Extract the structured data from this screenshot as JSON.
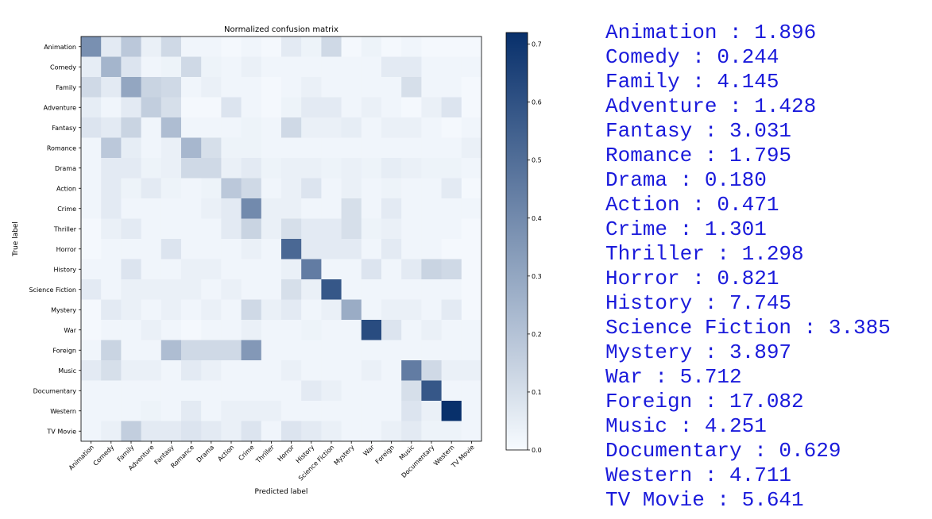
{
  "chart_data": {
    "type": "heatmap",
    "title": "Normalized confusion matrix",
    "xlabel": "Predicted label",
    "ylabel": "True label",
    "labels": [
      "Animation",
      "Comedy",
      "Family",
      "Adventure",
      "Fantasy",
      "Romance",
      "Drama",
      "Action",
      "Crime",
      "Thriller",
      "Horror",
      "History",
      "Science Fiction",
      "Mystery",
      "War",
      "Foreign",
      "Music",
      "Documentary",
      "Western",
      "TV Movie"
    ],
    "values": [
      [
        0.38,
        0.06,
        0.18,
        0.04,
        0.12,
        0.02,
        0.02,
        0.01,
        0.02,
        0.01,
        0.06,
        0.03,
        0.12,
        0.01,
        0.03,
        0.01,
        0.02,
        0.01,
        0.01,
        0.01
      ],
      [
        0.05,
        0.25,
        0.08,
        0.02,
        0.03,
        0.12,
        0.03,
        0.02,
        0.04,
        0.02,
        0.02,
        0.02,
        0.02,
        0.02,
        0.02,
        0.06,
        0.06,
        0.02,
        0.02,
        0.02
      ],
      [
        0.12,
        0.06,
        0.3,
        0.14,
        0.12,
        0.02,
        0.04,
        0.02,
        0.02,
        0.01,
        0.02,
        0.04,
        0.02,
        0.02,
        0.02,
        0.02,
        0.1,
        0.02,
        0.02,
        0.01
      ],
      [
        0.05,
        0.02,
        0.06,
        0.16,
        0.1,
        0.01,
        0.01,
        0.08,
        0.02,
        0.01,
        0.03,
        0.06,
        0.06,
        0.02,
        0.04,
        0.02,
        0.01,
        0.04,
        0.08,
        0.01
      ],
      [
        0.08,
        0.06,
        0.14,
        0.02,
        0.22,
        0.02,
        0.02,
        0.02,
        0.03,
        0.02,
        0.12,
        0.04,
        0.04,
        0.05,
        0.02,
        0.04,
        0.04,
        0.02,
        0.01,
        0.02
      ],
      [
        0.02,
        0.18,
        0.05,
        0.02,
        0.04,
        0.24,
        0.1,
        0.03,
        0.03,
        0.02,
        0.02,
        0.02,
        0.02,
        0.02,
        0.02,
        0.02,
        0.02,
        0.02,
        0.02,
        0.04
      ],
      [
        0.02,
        0.06,
        0.06,
        0.03,
        0.04,
        0.12,
        0.12,
        0.04,
        0.06,
        0.03,
        0.04,
        0.04,
        0.03,
        0.04,
        0.03,
        0.05,
        0.04,
        0.03,
        0.03,
        0.02
      ],
      [
        0.02,
        0.06,
        0.03,
        0.06,
        0.03,
        0.02,
        0.03,
        0.18,
        0.12,
        0.02,
        0.04,
        0.08,
        0.02,
        0.04,
        0.02,
        0.03,
        0.02,
        0.02,
        0.06,
        0.01
      ],
      [
        0.02,
        0.06,
        0.02,
        0.02,
        0.02,
        0.02,
        0.04,
        0.06,
        0.4,
        0.04,
        0.04,
        0.02,
        0.02,
        0.1,
        0.02,
        0.06,
        0.02,
        0.02,
        0.02,
        0.02
      ],
      [
        0.01,
        0.04,
        0.06,
        0.02,
        0.02,
        0.02,
        0.02,
        0.06,
        0.14,
        0.04,
        0.1,
        0.06,
        0.06,
        0.1,
        0.03,
        0.04,
        0.02,
        0.02,
        0.02,
        0.01
      ],
      [
        0.01,
        0.02,
        0.02,
        0.02,
        0.08,
        0.02,
        0.02,
        0.02,
        0.04,
        0.02,
        0.52,
        0.06,
        0.06,
        0.06,
        0.02,
        0.06,
        0.02,
        0.02,
        0.01,
        0.01
      ],
      [
        0.02,
        0.02,
        0.08,
        0.02,
        0.02,
        0.04,
        0.04,
        0.02,
        0.02,
        0.02,
        0.04,
        0.45,
        0.02,
        0.02,
        0.08,
        0.02,
        0.06,
        0.14,
        0.12,
        0.01
      ],
      [
        0.06,
        0.02,
        0.04,
        0.04,
        0.04,
        0.04,
        0.02,
        0.04,
        0.02,
        0.02,
        0.1,
        0.04,
        0.58,
        0.02,
        0.02,
        0.02,
        0.02,
        0.02,
        0.02,
        0.01
      ],
      [
        0.01,
        0.06,
        0.04,
        0.02,
        0.04,
        0.02,
        0.04,
        0.02,
        0.12,
        0.04,
        0.06,
        0.02,
        0.04,
        0.28,
        0.02,
        0.04,
        0.04,
        0.02,
        0.06,
        0.01
      ],
      [
        0.01,
        0.02,
        0.02,
        0.04,
        0.02,
        0.01,
        0.02,
        0.02,
        0.04,
        0.02,
        0.02,
        0.03,
        0.02,
        0.02,
        0.62,
        0.08,
        0.02,
        0.04,
        0.02,
        0.02
      ],
      [
        0.02,
        0.14,
        0.02,
        0.02,
        0.22,
        0.12,
        0.12,
        0.12,
        0.35,
        0.02,
        0.02,
        0.02,
        0.02,
        0.02,
        0.02,
        0.02,
        0.02,
        0.02,
        0.02,
        0.02
      ],
      [
        0.06,
        0.1,
        0.04,
        0.04,
        0.02,
        0.06,
        0.04,
        0.02,
        0.02,
        0.02,
        0.04,
        0.02,
        0.02,
        0.02,
        0.04,
        0.02,
        0.45,
        0.12,
        0.04,
        0.04
      ],
      [
        0.02,
        0.02,
        0.02,
        0.02,
        0.02,
        0.02,
        0.02,
        0.02,
        0.02,
        0.02,
        0.02,
        0.06,
        0.04,
        0.02,
        0.02,
        0.02,
        0.1,
        0.58,
        0.02,
        0.02
      ],
      [
        0.02,
        0.02,
        0.02,
        0.03,
        0.02,
        0.06,
        0.02,
        0.04,
        0.04,
        0.04,
        0.02,
        0.02,
        0.02,
        0.02,
        0.02,
        0.02,
        0.08,
        0.04,
        0.72,
        0.02
      ],
      [
        0.02,
        0.04,
        0.16,
        0.06,
        0.06,
        0.08,
        0.06,
        0.04,
        0.08,
        0.02,
        0.08,
        0.06,
        0.04,
        0.02,
        0.02,
        0.04,
        0.06,
        0.03,
        0.03,
        0.02
      ]
    ],
    "vmin": 0.0,
    "vmax": 0.72,
    "colorbar_ticks": [
      "0.0",
      "0.1",
      "0.2",
      "0.3",
      "0.4",
      "0.5",
      "0.6",
      "0.7"
    ],
    "colormap": [
      "#f7fbff",
      "#08306b"
    ]
  },
  "scores": [
    "Animation : 1.896",
    "Comedy : 0.244",
    "Family : 4.145",
    "Adventure : 1.428",
    "Fantasy : 3.031",
    "Romance : 1.795",
    "Drama : 0.180",
    "Action : 0.471",
    "Crime : 1.301",
    "Thriller : 1.298",
    "Horror : 0.821",
    "History : 7.745",
    "Science Fiction : 3.385",
    "Mystery : 3.897",
    "War : 5.712",
    "Foreign : 17.082",
    "Music : 4.251",
    "Documentary : 0.629",
    "Western : 4.711",
    "TV Movie : 5.641"
  ]
}
